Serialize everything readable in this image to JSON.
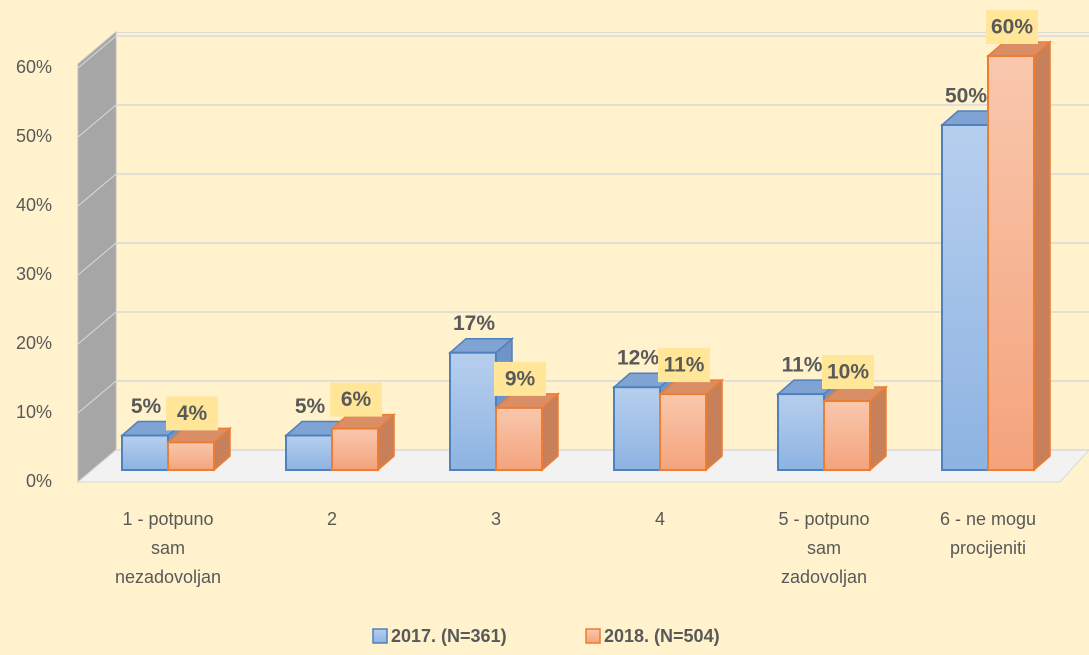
{
  "chart_data": {
    "type": "bar3d",
    "categories": [
      "1 - potpuno sam nezadovoljan",
      "2",
      "3",
      "4",
      "5 - potpuno sam zadovoljan",
      "6 - ne mogu procijeniti"
    ],
    "series": [
      {
        "name": "2017. (N=361)",
        "color": "#9dbfe8",
        "values": [
          5,
          5,
          17,
          12,
          11,
          50
        ],
        "value_labels": [
          "5%",
          "5%",
          "17%",
          "12%",
          "11%",
          "50%"
        ]
      },
      {
        "name": "2018. (N=504)",
        "color": "#f6b391",
        "values": [
          4,
          6,
          9,
          11,
          10,
          60
        ],
        "value_labels": [
          "4%",
          "6%",
          "9%",
          "11%",
          "10%",
          "60%"
        ]
      }
    ],
    "ylim": [
      0,
      60
    ],
    "yticks": [
      {
        "value": 0,
        "label": "0%"
      },
      {
        "value": 10,
        "label": "10%"
      },
      {
        "value": 20,
        "label": "20%"
      },
      {
        "value": 30,
        "label": "30%"
      },
      {
        "value": 40,
        "label": "40%"
      },
      {
        "value": 50,
        "label": "50%"
      },
      {
        "value": 60,
        "label": "60%"
      }
    ],
    "grid": true,
    "legend": "bottom"
  }
}
